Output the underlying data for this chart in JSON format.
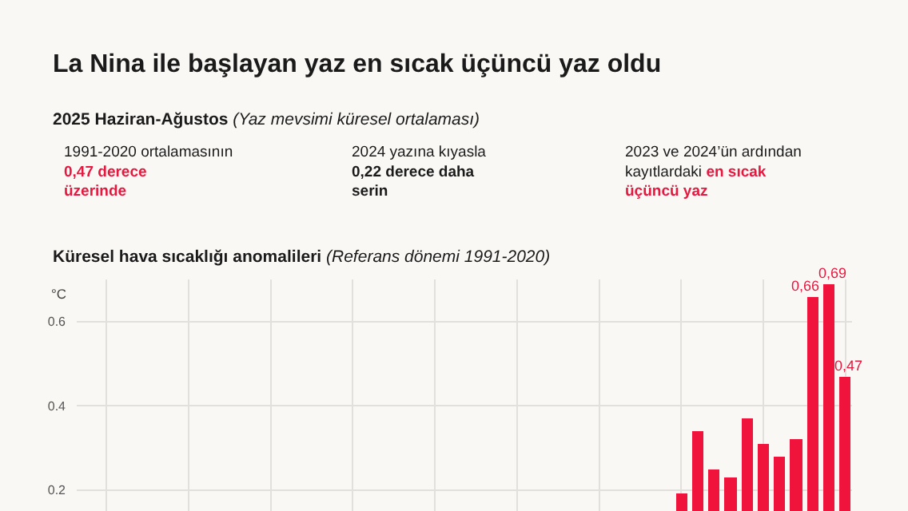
{
  "chart_data": {
    "type": "bar",
    "title": "La Nina ile başlayan yaz en sıcak üçüncü yaz oldu",
    "subtitle": "2025 Haziran-Ağustos (Yaz mevsimi küresel ortalaması)",
    "annotations": [
      "1991-2020 ortalamasının",
      "0,47 derece üzerinde",
      "2024 yazına kıyasla",
      "0,22 derece daha serin",
      "2023 ve 2024’ün ardından kayıtlardaki",
      "en sıcak üçüncü yaz",
      "Küresel hava sıcaklığı anomalileri (Referans dönemi 1991-2020)"
    ],
    "ylabel": "°C",
    "categories": [
      null,
      null,
      null,
      null,
      null,
      null,
      null,
      null,
      null,
      null,
      null,
      null,
      null,
      null,
      null,
      null,
      null,
      null,
      null,
      null,
      null,
      null,
      null,
      null,
      null,
      null,
      null,
      null,
      null,
      null,
      null,
      null,
      null,
      null,
      null,
      null,
      null,
      null,
      null,
      null,
      null,
      null,
      null,
      null,
      null,
      null
    ],
    "values": [
      null,
      null,
      null,
      null,
      null,
      null,
      null,
      null,
      null,
      null,
      null,
      null,
      null,
      null,
      null,
      null,
      null,
      null,
      null,
      null,
      null,
      null,
      null,
      null,
      null,
      null,
      null,
      null,
      null,
      null,
      null,
      null,
      null,
      null,
      null,
      0.19,
      0.34,
      0.25,
      0.23,
      0.37,
      0.31,
      0.28,
      0.32,
      0.66,
      0.69,
      0.47
    ],
    "value_labels": [
      null,
      null,
      null,
      null,
      null,
      null,
      null,
      null,
      null,
      null,
      null,
      null,
      null,
      null,
      null,
      null,
      null,
      null,
      null,
      null,
      null,
      null,
      null,
      null,
      null,
      null,
      null,
      null,
      null,
      null,
      null,
      null,
      null,
      null,
      null,
      null,
      null,
      null,
      null,
      null,
      null,
      null,
      null,
      "0,66",
      "0,69",
      "0,47"
    ],
    "color": "#f0143c",
    "ylim": [
      0.15,
      0.7
    ],
    "yticks": [
      0.2,
      0.4,
      0.6
    ],
    "tick_labels": "y",
    "grid": true,
    "legend": false
  }
}
